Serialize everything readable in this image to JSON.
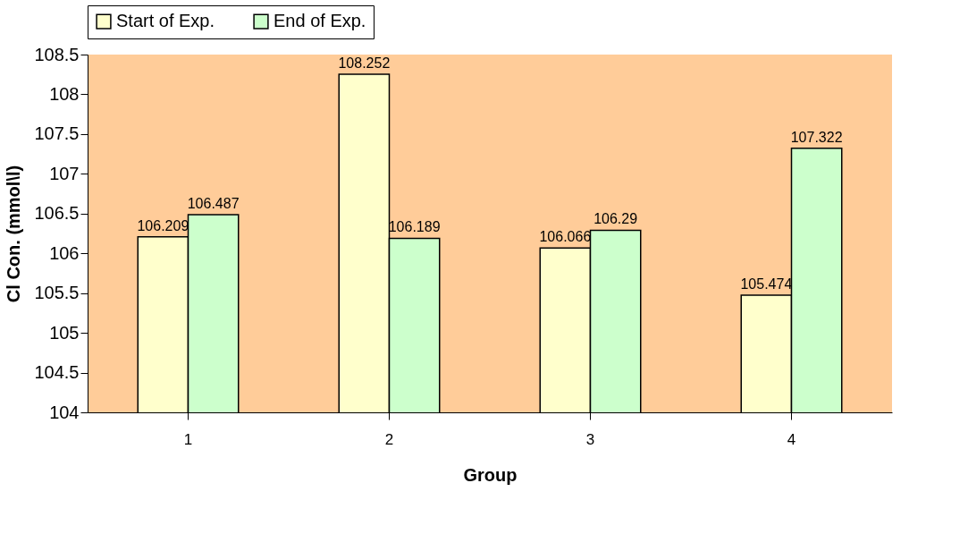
{
  "chart_data": {
    "type": "bar",
    "xlabel": "Group",
    "ylabel": "Cl Con. (mmol\\l)",
    "categories": [
      "1",
      "2",
      "3",
      "4"
    ],
    "series": [
      {
        "name": "Start of Exp.",
        "color": "#ffffcc",
        "values": [
          106.209,
          108.252,
          106.066,
          105.474
        ]
      },
      {
        "name": "End of Exp.",
        "color": "#ccffcc",
        "values": [
          106.487,
          106.189,
          106.29,
          107.322
        ]
      }
    ],
    "ylim": [
      104,
      108.5
    ],
    "yticks": [
      104,
      104.5,
      105,
      105.5,
      106,
      106.5,
      107,
      107.5,
      108,
      108.5
    ],
    "grid": false,
    "legend": "top",
    "data_labels": true
  }
}
